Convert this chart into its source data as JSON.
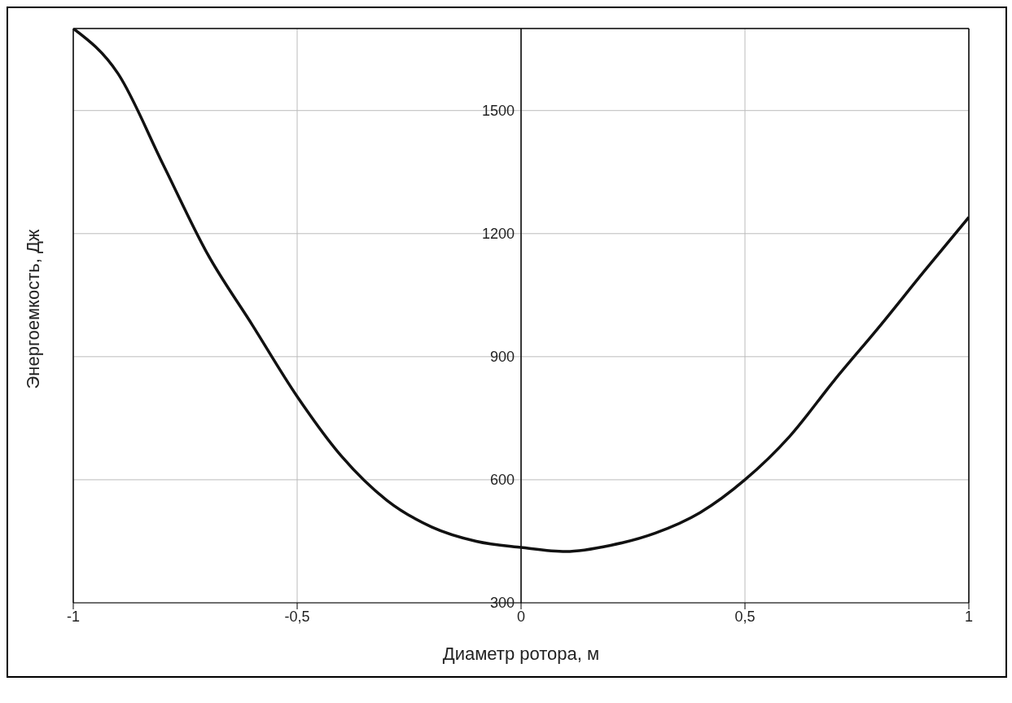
{
  "chart_data": {
    "type": "line",
    "xlabel": "Диаметр ротора, м",
    "ylabel": "Энергоемкость, Дж",
    "x": [
      -1,
      -0.9,
      -0.8,
      -0.7,
      -0.6,
      -0.5,
      -0.4,
      -0.3,
      -0.2,
      -0.1,
      0,
      0.1,
      0.2,
      0.3,
      0.4,
      0.5,
      0.6,
      0.7,
      0.8,
      0.9,
      1
    ],
    "series": [
      {
        "color": "#111111",
        "values": [
          1700,
          1590,
          1370,
          1150,
          977,
          803,
          656,
          550,
          485,
          450,
          435,
          425,
          440,
          470,
          520,
          600,
          706,
          843,
          973,
          1108,
          1240
        ]
      }
    ],
    "xlim": [
      -1,
      1
    ],
    "xticks": [
      -1,
      {
        "value": -0.5,
        "label": "-0,5"
      },
      0,
      {
        "value": 0.5,
        "label": "0,5"
      },
      1
    ],
    "ylim": [
      300,
      1700
    ],
    "yticks": [
      300,
      600,
      900,
      1200,
      1500
    ],
    "grid": true,
    "marker": "none",
    "line_style": "solid"
  }
}
